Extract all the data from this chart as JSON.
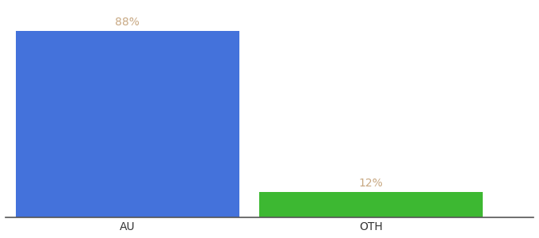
{
  "categories": [
    "AU",
    "OTH"
  ],
  "values": [
    88,
    12
  ],
  "bar_colors": [
    "#4472db",
    "#3db832"
  ],
  "label_color": "#c8a882",
  "background_color": "#ffffff",
  "ylim": [
    0,
    100
  ],
  "bar_width": 0.55,
  "x_positions": [
    0.3,
    0.9
  ],
  "xlim": [
    0.0,
    1.3
  ],
  "figsize": [
    6.8,
    3.0
  ],
  "dpi": 100,
  "label_fontsize": 10,
  "tick_fontsize": 10,
  "spine_color": "#555555"
}
